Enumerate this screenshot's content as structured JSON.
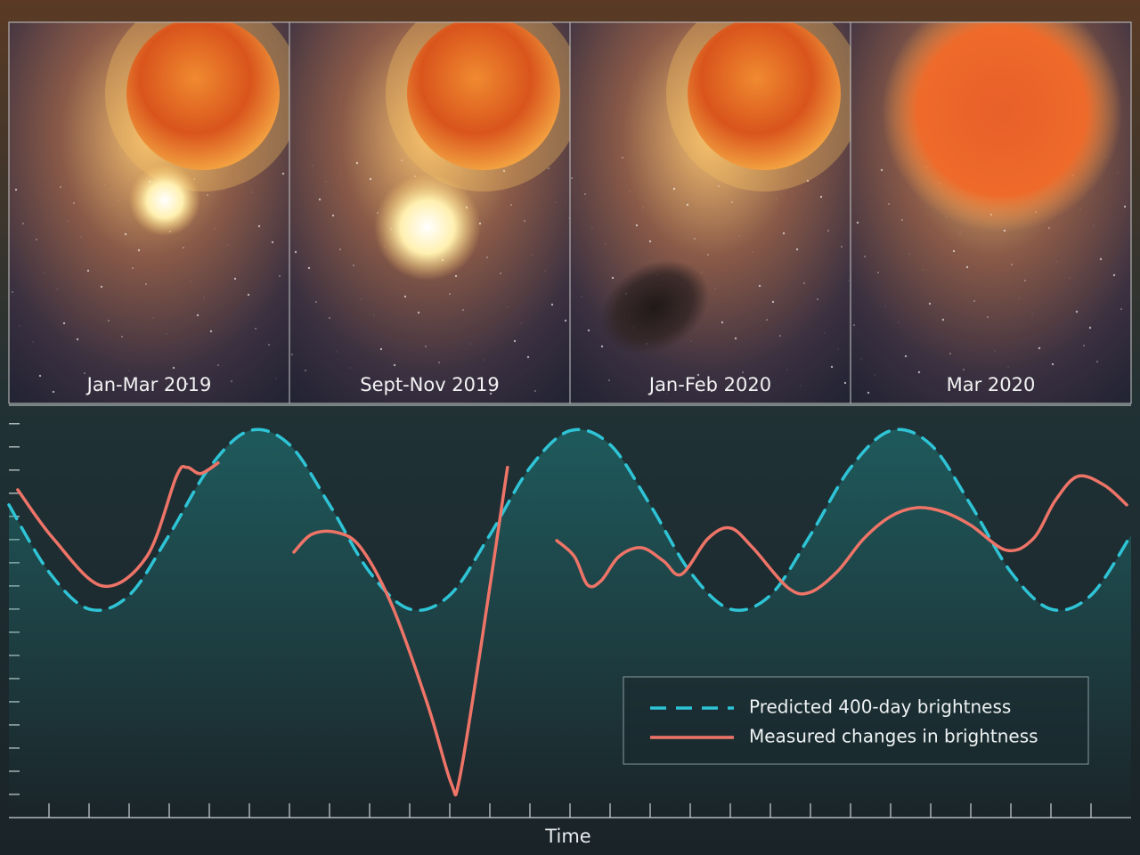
{
  "panels": [
    {
      "label": "Jan-Mar 2019"
    },
    {
      "label": "Sept-Nov  2019"
    },
    {
      "label": "Jan-Feb 2020"
    },
    {
      "label": "Mar 2020"
    }
  ],
  "chart_data": {
    "type": "line",
    "x_label": "Time",
    "xlim": [
      0,
      28
    ],
    "xticks": [
      1,
      2,
      3,
      4,
      5,
      6,
      7,
      8,
      9,
      10,
      11,
      12,
      13,
      14,
      15,
      16,
      17,
      18,
      19,
      20,
      21,
      22,
      23,
      24,
      25,
      26,
      27
    ],
    "ylim": [
      0,
      17.8
    ],
    "yticks": [
      1,
      2,
      3,
      4,
      5,
      6,
      7,
      8,
      9,
      10,
      11,
      12,
      13,
      14,
      15,
      16,
      17
    ],
    "legend": "lower right",
    "series": [
      {
        "name": "Predicted 400-day brightness",
        "color": "#2ec4d6",
        "dashed": true,
        "x": [
          0,
          1,
          2,
          3,
          4,
          5,
          6,
          7,
          8,
          9,
          10,
          11,
          12,
          13,
          14,
          15,
          16,
          17,
          18,
          19,
          20,
          21,
          22,
          23,
          24,
          25,
          26,
          27,
          28
        ],
        "values": [
          13.5,
          10.6,
          9.0,
          9.6,
          12.2,
          15.1,
          16.7,
          16.1,
          13.5,
          10.6,
          9.0,
          9.6,
          12.2,
          15.1,
          16.7,
          16.1,
          13.5,
          10.6,
          9.0,
          9.6,
          12.2,
          15.1,
          16.7,
          16.1,
          13.5,
          10.6,
          9.0,
          9.6,
          12.2
        ]
      },
      {
        "name": "Measured changes in brightness",
        "color": "#ef7468",
        "dashed": false,
        "x": [
          0.22,
          1.11,
          2.33,
          3.44,
          4.18,
          4.44,
          4.78,
          5.22,
          6.0,
          7.11,
          7.56,
          8.18,
          8.78,
          9.56,
          10.44,
          11.04,
          11.24,
          11.78,
          12.44,
          13.0,
          13.67,
          14.11,
          14.44,
          14.78,
          15.22,
          15.78,
          16.33,
          16.78,
          17.44,
          18.0,
          18.56,
          19.44,
          20.0,
          20.67,
          21.33,
          22.0,
          22.67,
          23.33,
          24.0,
          24.89,
          25.56,
          26.11,
          26.67,
          27.33,
          27.89
        ],
        "values": [
          14.15,
          12.04,
          10.0,
          11.27,
          14.73,
          15.12,
          14.85,
          15.31,
          null,
          11.46,
          12.23,
          12.31,
          11.65,
          9.15,
          4.92,
          1.46,
          1.65,
          7.42,
          15.12,
          null,
          11.96,
          11.27,
          10.04,
          10.23,
          11.27,
          11.65,
          11.08,
          10.5,
          12.04,
          12.5,
          11.65,
          9.92,
          9.73,
          10.62,
          12.04,
          13.0,
          13.38,
          13.19,
          12.62,
          11.54,
          12.04,
          13.69,
          14.73,
          14.35,
          13.5
        ]
      }
    ]
  }
}
